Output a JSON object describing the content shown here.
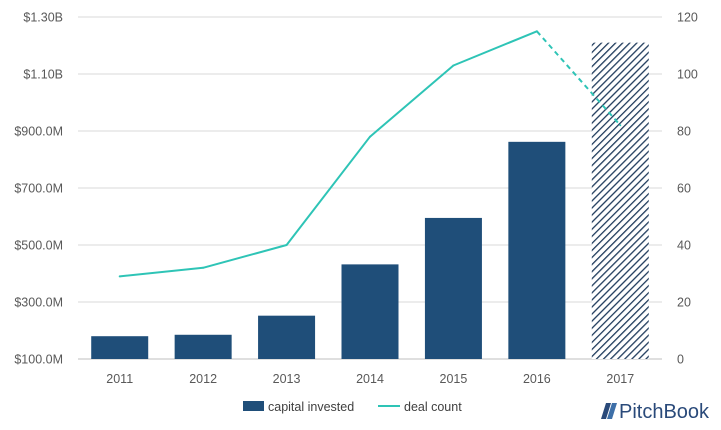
{
  "chart_data": {
    "type": "bar",
    "categories": [
      "2011",
      "2012",
      "2013",
      "2014",
      "2015",
      "2016",
      "2017"
    ],
    "y_left": {
      "ticks": [
        100,
        300,
        500,
        700,
        900,
        1100,
        1300
      ],
      "tick_labels": [
        "$100.0M",
        "$300.0M",
        "$500.0M",
        "$700.0M",
        "$900.0M",
        "$1.10B",
        "$1.30B"
      ],
      "range": [
        100,
        1300
      ],
      "unit": "USD millions"
    },
    "y_right": {
      "ticks": [
        0,
        20,
        40,
        60,
        80,
        100,
        120
      ],
      "tick_labels": [
        "0",
        "20",
        "40",
        "60",
        "80",
        "100",
        "120"
      ],
      "range": [
        0,
        120
      ]
    },
    "series": [
      {
        "name": "capital invested",
        "type": "bar",
        "axis": "left",
        "color": "#1f4e79",
        "values": [
          180,
          185,
          252,
          432,
          595,
          862,
          1210
        ],
        "projected": [
          false,
          false,
          false,
          false,
          false,
          false,
          true
        ]
      },
      {
        "name": "deal count",
        "type": "line",
        "axis": "right",
        "color": "#2ec4b6",
        "values": [
          29,
          32,
          40,
          78,
          103,
          115,
          82
        ],
        "projected": [
          false,
          false,
          false,
          false,
          false,
          false,
          true
        ]
      }
    ],
    "grid": "horizontal",
    "legend_position": "bottom"
  },
  "brand": {
    "name": "PitchBook",
    "icon": "pitchbook-logo-icon",
    "color": "#2a4a7a"
  }
}
